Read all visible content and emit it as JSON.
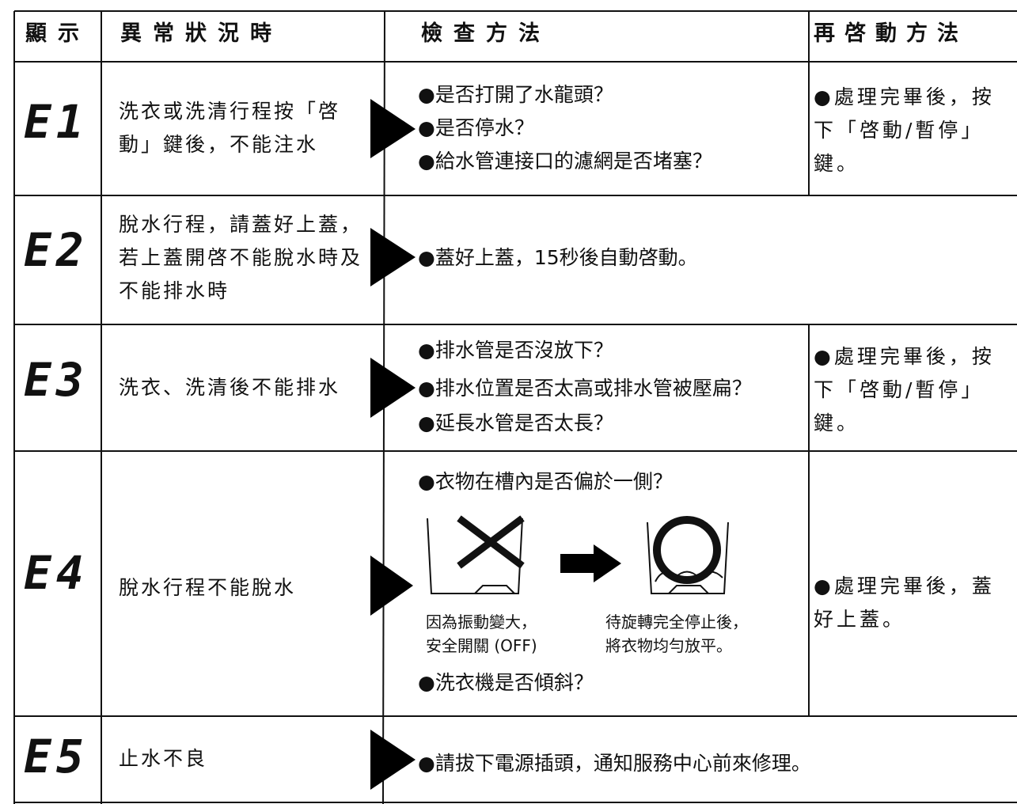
{
  "header": [
    "顯示",
    "異常狀況時",
    "檢查方法",
    "再啓動方法"
  ],
  "rows": [
    {
      "code": "E1",
      "condition": "洗衣或洗清行程按「啓動」鍵後，不能注水",
      "checks": [
        "●是否打開了水龍頭？",
        "●是否停水？",
        "●給水管連接口的濾網是否堵塞？"
      ],
      "restart": "●處理完畢後，按下「啓動/暫停」鍵。"
    },
    {
      "code": "E2",
      "condition": "脫水行程，請蓋好上蓋，若上蓋開啓不能脫水時及不能排水時",
      "checks": [
        "●蓋好上蓋，15秒後自動啓動。"
      ]
    },
    {
      "code": "E3",
      "condition": "洗衣、洗清後不能排水",
      "checks": [
        "●排水管是否沒放下？",
        "●排水位置是否太高或排水管被壓扁？",
        "●延長水管是否太長？"
      ],
      "restart": "●處理完畢後，按下「啓動/暫停」鍵。"
    },
    {
      "code": "E4",
      "condition": "脫水行程不能脫水",
      "checks": [
        "●衣物在槽內是否偏於一側？",
        "●洗衣機是否傾斜？"
      ],
      "captions": [
        [
          "因為振動變大，",
          "安全開關 (OFF)"
        ],
        [
          "待旋轉完全停止後，",
          "將衣物均勻放平。"
        ]
      ],
      "restart": "●處理完畢後，蓋好上蓋。"
    },
    {
      "code": "E5",
      "condition": "止水不良",
      "checks": [
        "●請拔下電源插頭，通知服務中心前來修理。"
      ]
    }
  ]
}
